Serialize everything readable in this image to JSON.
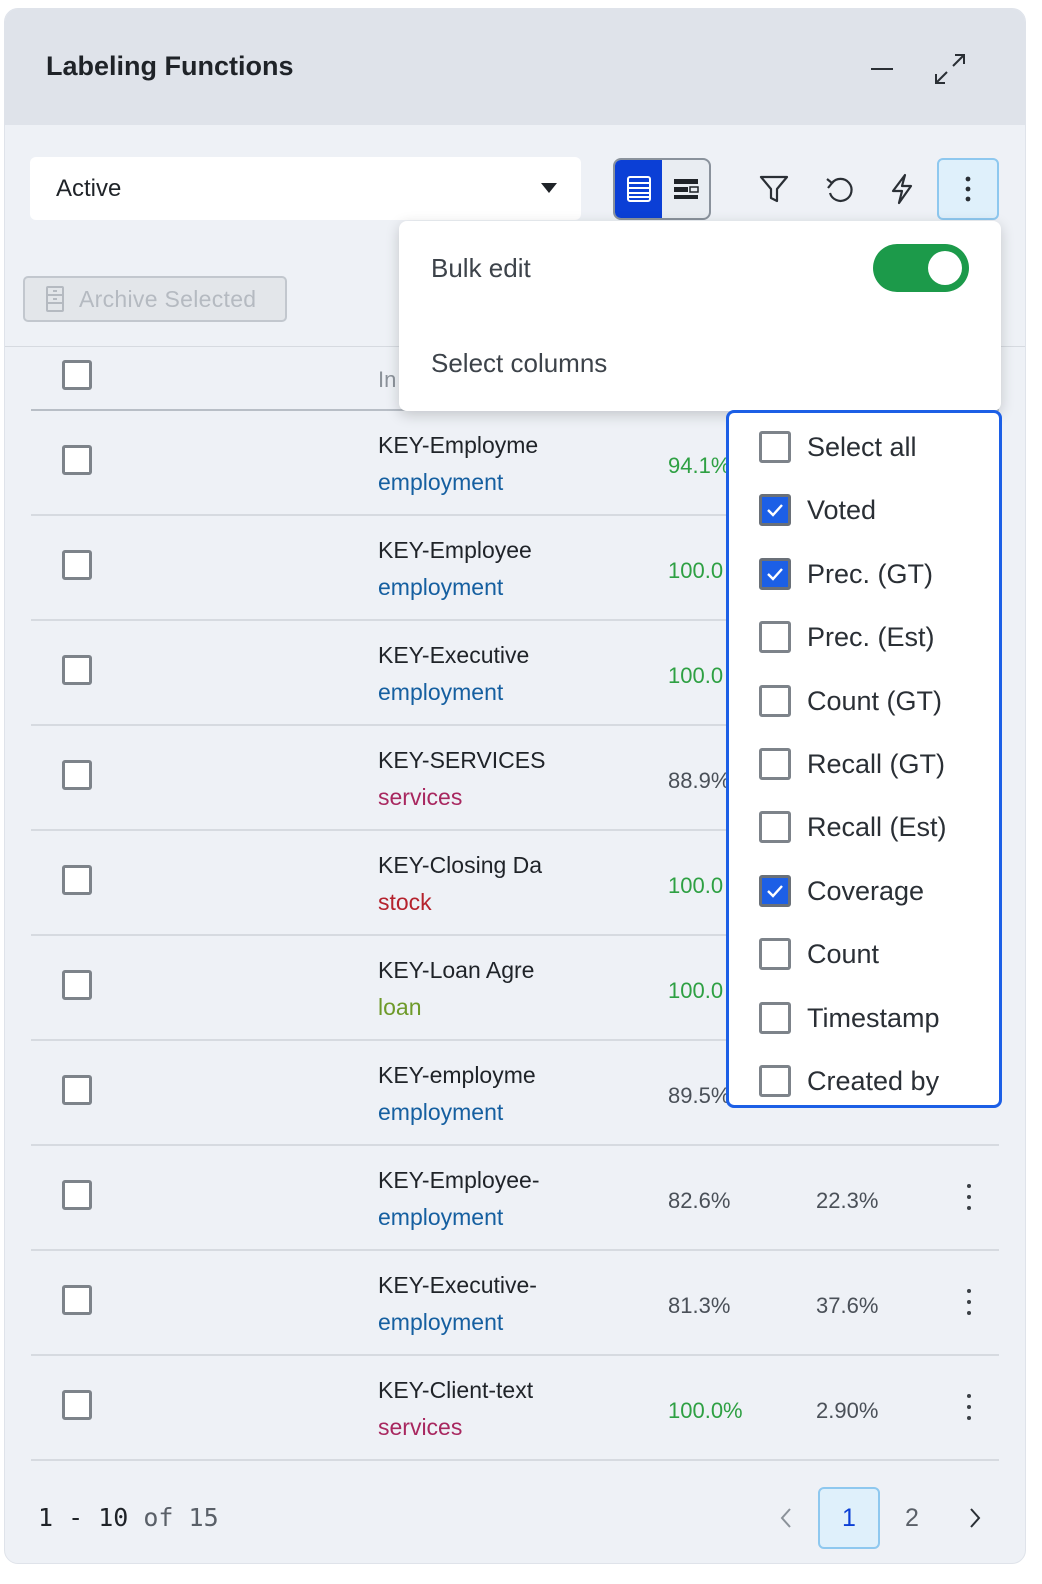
{
  "panel": {
    "title": "Labeling Functions"
  },
  "toolbar": {
    "status_value": "Active",
    "archive_label": "Archive Selected",
    "icons": [
      "minimize-icon",
      "expand-icon",
      "table-view-icon",
      "detail-view-icon",
      "filter-icon",
      "refresh-icon",
      "lightning-icon",
      "more-vertical-icon",
      "archive-icon"
    ]
  },
  "table": {
    "name_header": "In",
    "rows": [
      {
        "name": "KEY-Employme",
        "label": "employment",
        "label_color": "#155fa0",
        "prec": "94.1%",
        "prec_color": "#2ea043",
        "cov": ""
      },
      {
        "name": "KEY-Employee",
        "label": "employment",
        "label_color": "#155fa0",
        "prec": "100.0",
        "prec_color": "#2ea043",
        "cov": ""
      },
      {
        "name": "KEY-Executive",
        "label": "employment",
        "label_color": "#155fa0",
        "prec": "100.0",
        "prec_color": "#2ea043",
        "cov": ""
      },
      {
        "name": "KEY-SERVICES",
        "label": "services",
        "label_color": "#a8275f",
        "prec": "88.9%",
        "prec_color": "#4a5058",
        "cov": ""
      },
      {
        "name": "KEY-Closing Da",
        "label": "stock",
        "label_color": "#b5222d",
        "prec": "100.0",
        "prec_color": "#2ea043",
        "cov": ""
      },
      {
        "name": "KEY-Loan Agre",
        "label": "loan",
        "label_color": "#6e9a2a",
        "prec": "100.0",
        "prec_color": "#2ea043",
        "cov": ""
      },
      {
        "name": "KEY-employme",
        "label": "employment",
        "label_color": "#155fa0",
        "prec": "89.5%",
        "prec_color": "#4a5058",
        "cov": ""
      },
      {
        "name": "KEY-Employee-",
        "label": "employment",
        "label_color": "#155fa0",
        "prec": "82.6%",
        "prec_color": "#4a5058",
        "cov": "22.3%"
      },
      {
        "name": "KEY-Executive-",
        "label": "employment",
        "label_color": "#155fa0",
        "prec": "81.3%",
        "prec_color": "#4a5058",
        "cov": "37.6%"
      },
      {
        "name": "KEY-Client-text",
        "label": "services",
        "label_color": "#a8275f",
        "prec": "100.0%",
        "prec_color": "#2ea043",
        "cov": "2.90%"
      }
    ]
  },
  "pagination": {
    "range": "1 - 10",
    "of": "of",
    "total": "15",
    "pages": [
      "1",
      "2"
    ],
    "current": "1"
  },
  "menu": {
    "bulk_edit_label": "Bulk edit",
    "bulk_edit_on": true,
    "select_columns_label": "Select columns"
  },
  "columns": [
    {
      "label": "Select all",
      "checked": false
    },
    {
      "label": "Voted",
      "checked": true
    },
    {
      "label": "Prec. (GT)",
      "checked": true
    },
    {
      "label": "Prec. (Est)",
      "checked": false
    },
    {
      "label": "Count (GT)",
      "checked": false
    },
    {
      "label": "Recall (GT)",
      "checked": false
    },
    {
      "label": "Recall (Est)",
      "checked": false
    },
    {
      "label": "Coverage",
      "checked": true
    },
    {
      "label": "Count",
      "checked": false
    },
    {
      "label": "Timestamp",
      "checked": false
    },
    {
      "label": "Created by",
      "checked": false
    }
  ],
  "colors": {
    "accent": "#0b3fd6",
    "toggle_on": "#1c9a4a",
    "panel_border": "#1c5fe6"
  }
}
